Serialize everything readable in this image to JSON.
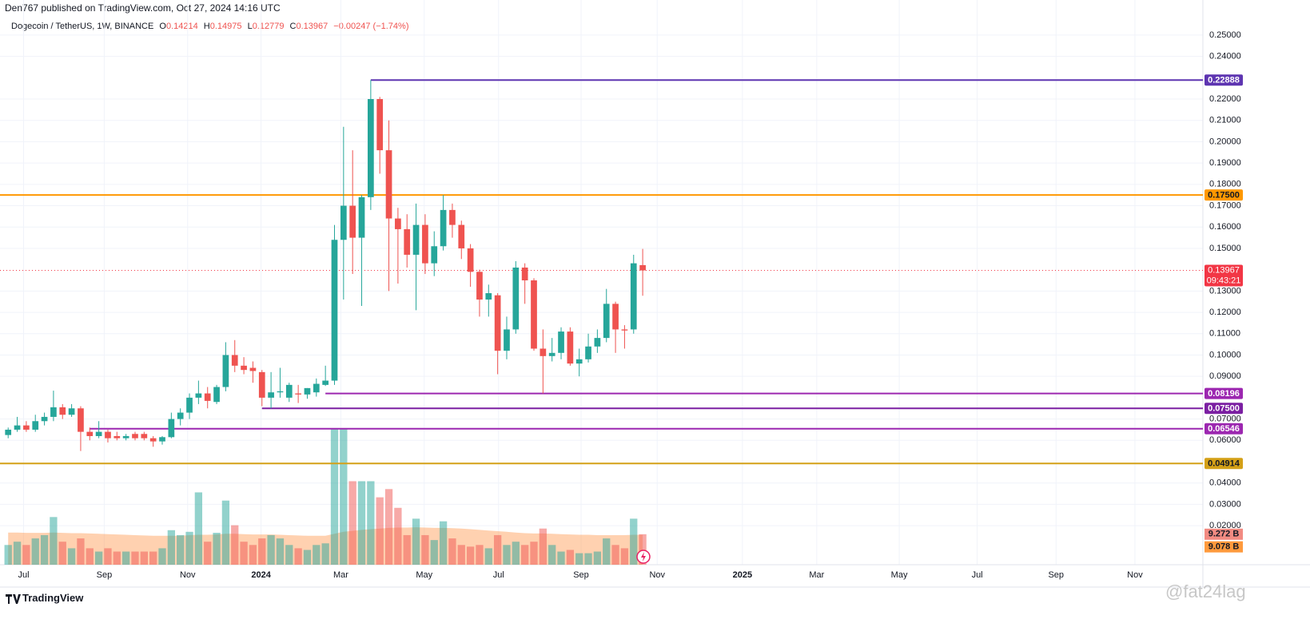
{
  "header": {
    "published": "Den767 published on TradingView.com, Oct 27, 2024 14:16 UTC"
  },
  "legend": {
    "symbol": "Dogecoin / TetherUS, 1W, BINANCE",
    "o": "O",
    "h": "H",
    "l": "L",
    "c": "C",
    "change": "−0.00247 (−1.74%)"
  },
  "footer": {
    "brand": "TradingView",
    "watermark": "@fat24lag"
  },
  "chart_data": {
    "type": "candlestick",
    "up_color": "#26a69a",
    "down_color": "#ef5350",
    "open": [
      0.0625,
      0.065,
      0.067,
      0.065,
      0.069,
      0.071,
      0.0755,
      0.072,
      0.075,
      0.064,
      0.062,
      0.064,
      0.062,
      0.061,
      0.063,
      0.063,
      0.061,
      0.0595,
      0.0615,
      0.07,
      0.073,
      0.08,
      0.082,
      0.078,
      0.085,
      0.1,
      0.095,
      0.094,
      0.092,
      0.08,
      0.0825,
      0.08,
      0.082,
      0.0815,
      0.0825,
      0.086,
      0.088,
      0.154,
      0.17,
      0.155,
      0.174,
      0.22,
      0.196,
      0.164,
      0.159,
      0.147,
      0.161,
      0.143,
      0.151,
      0.168,
      0.161,
      0.15,
      0.139,
      0.126,
      0.128,
      0.102,
      0.112,
      0.141,
      0.135,
      0.103,
      0.0995,
      0.101,
      0.111,
      0.096,
      0.098,
      0.104,
      0.108,
      0.124,
      0.112,
      0.112,
      0.14214
    ],
    "high": [
      0.066,
      0.071,
      0.069,
      0.072,
      0.073,
      0.0833,
      0.077,
      0.077,
      0.076,
      0.066,
      0.069,
      0.065,
      0.064,
      0.063,
      0.064,
      0.064,
      0.062,
      0.062,
      0.073,
      0.075,
      0.082,
      0.088,
      0.085,
      0.086,
      0.106,
      0.107,
      0.099,
      0.097,
      0.093,
      0.092,
      0.094,
      0.087,
      0.086,
      0.0845,
      0.089,
      0.095,
      0.161,
      0.207,
      0.196,
      0.175,
      0.22888,
      0.221,
      0.21,
      0.169,
      0.166,
      0.171,
      0.166,
      0.158,
      0.175,
      0.171,
      0.163,
      0.152,
      0.14,
      0.133,
      0.129,
      0.118,
      0.144,
      0.143,
      0.136,
      0.112,
      0.108,
      0.113,
      0.113,
      0.103,
      0.11,
      0.112,
      0.131,
      0.125,
      0.114,
      0.147,
      0.14975
    ],
    "low": [
      0.061,
      0.064,
      0.064,
      0.064,
      0.067,
      0.069,
      0.07,
      0.071,
      0.055,
      0.06,
      0.061,
      0.059,
      0.06,
      0.06,
      0.06,
      0.06,
      0.057,
      0.058,
      0.061,
      0.067,
      0.07,
      0.077,
      0.075,
      0.077,
      0.083,
      0.092,
      0.091,
      0.087,
      0.076,
      0.075,
      0.08,
      0.078,
      0.0775,
      0.0795,
      0.0805,
      0.0855,
      0.086,
      0.126,
      0.138,
      0.123,
      0.168,
      0.185,
      0.13,
      0.1335,
      0.141,
      0.121,
      0.138,
      0.137,
      0.149,
      0.155,
      0.145,
      0.132,
      0.118,
      0.118,
      0.091,
      0.098,
      0.11,
      0.124,
      0.102,
      0.08196,
      0.097,
      0.098,
      0.095,
      0.09,
      0.0965,
      0.101,
      0.106,
      0.101,
      0.103,
      0.11,
      0.12779
    ],
    "close": [
      0.065,
      0.067,
      0.065,
      0.069,
      0.071,
      0.0755,
      0.072,
      0.075,
      0.064,
      0.062,
      0.064,
      0.061,
      0.061,
      0.062,
      0.061,
      0.061,
      0.0595,
      0.0615,
      0.07,
      0.073,
      0.08,
      0.082,
      0.0785,
      0.085,
      0.1,
      0.095,
      0.093,
      0.0925,
      0.08,
      0.0825,
      0.083,
      0.086,
      0.0815,
      0.0845,
      0.0865,
      0.088,
      0.154,
      0.17,
      0.155,
      0.174,
      0.22,
      0.196,
      0.164,
      0.159,
      0.147,
      0.161,
      0.143,
      0.151,
      0.168,
      0.161,
      0.15,
      0.139,
      0.126,
      0.129,
      0.102,
      0.112,
      0.141,
      0.135,
      0.103,
      0.0995,
      0.101,
      0.111,
      0.096,
      0.098,
      0.104,
      0.108,
      0.124,
      0.112,
      0.1115,
      0.143,
      0.13967
    ],
    "volume": [
      6,
      7,
      6,
      8,
      9,
      14.5,
      7,
      5,
      8,
      5,
      4,
      5,
      4,
      4,
      4,
      4,
      4,
      5,
      10.5,
      9,
      10,
      22,
      7,
      9.7,
      19.5,
      12,
      7,
      6,
      8,
      9,
      8,
      6,
      5,
      4.5,
      6,
      6.5,
      41.5,
      41.5,
      25.4,
      25.4,
      25.4,
      20.5,
      23,
      17.3,
      9,
      14,
      9,
      7.5,
      13.2,
      8,
      6,
      5.5,
      6,
      5,
      9,
      6,
      7,
      6,
      7,
      11,
      6,
      4,
      4.5,
      3.5,
      3.5,
      4,
      8,
      6,
      5,
      14,
      9.272
    ],
    "volume_ma": [
      9.8,
      9.8,
      9.7,
      9.7,
      9.7,
      9.8,
      9.7,
      9.6,
      9.6,
      9.5,
      9.4,
      9.3,
      9.2,
      9.1,
      9.0,
      8.9,
      8.8,
      8.8,
      8.8,
      8.8,
      9.0,
      9.1,
      9.1,
      9.2,
      9.4,
      9.4,
      9.3,
      9.2,
      9.2,
      9.2,
      9.1,
      9.0,
      8.9,
      8.8,
      8.8,
      8.8,
      9.4,
      10.0,
      10.3,
      10.6,
      10.8,
      11.0,
      11.2,
      11.3,
      11.3,
      11.4,
      11.3,
      11.2,
      11.2,
      11.1,
      11.0,
      10.8,
      10.6,
      10.4,
      10.2,
      10.0,
      9.8,
      9.6,
      9.5,
      9.5,
      9.4,
      9.3,
      9.2,
      9.1,
      9.1,
      9.0,
      9.0,
      9.0,
      9.0,
      9.1,
      9.078
    ],
    "volume_up_color": "rgba(38,166,154,0.5)",
    "volume_down_color": "rgba(239,83,80,0.5)",
    "volume_ma_color": "rgba(255,152,80,0.45)",
    "volume_lim": [
      0,
      60
    ],
    "volume_labels": [
      {
        "value": 9.272,
        "label": "9.272 B",
        "color": "#f28b82"
      },
      {
        "value": 9.078,
        "label": "9.078 B",
        "color": "#ff9a3c"
      }
    ],
    "last_price": {
      "value": 0.13967,
      "label": "0.13967",
      "countdown": "09:43:21",
      "color": "#f23645"
    },
    "levels": [
      {
        "value": 0.22888,
        "label": "0.22888",
        "color": "#5e35b1",
        "from": 40
      },
      {
        "value": 0.175,
        "label": "0.17500",
        "color": "#ff9800"
      },
      {
        "value": 0.08196,
        "label": "0.08196",
        "color": "#9c27b0",
        "from": 35
      },
      {
        "value": 0.075,
        "label": "0.07500",
        "color": "#7b1fa2",
        "from": 28
      },
      {
        "value": 0.06546,
        "label": "0.06546",
        "color": "#9c27b0",
        "from": 9
      },
      {
        "value": 0.04914,
        "label": "0.04914",
        "color": "#d4a017"
      }
    ],
    "ylim": [
      0.0017,
      0.2552
    ],
    "yticks": [
      {
        "value": 0.25,
        "label": "0.25000"
      },
      {
        "value": 0.24,
        "label": "0.24000"
      },
      {
        "value": 0.22,
        "label": "0.22000"
      },
      {
        "value": 0.21,
        "label": "0.21000"
      },
      {
        "value": 0.2,
        "label": "0.20000"
      },
      {
        "value": 0.19,
        "label": "0.19000"
      },
      {
        "value": 0.18,
        "label": "0.18000"
      },
      {
        "value": 0.17,
        "label": "0.17000"
      },
      {
        "value": 0.16,
        "label": "0.16000"
      },
      {
        "value": 0.15,
        "label": "0.15000"
      },
      {
        "value": 0.13,
        "label": "0.13000"
      },
      {
        "value": 0.12,
        "label": "0.12000"
      },
      {
        "value": 0.11,
        "label": "0.11000"
      },
      {
        "value": 0.1,
        "label": "0.10000"
      },
      {
        "value": 0.09,
        "label": "0.09000"
      },
      {
        "value": 0.07,
        "label": "0.07000"
      },
      {
        "value": 0.06,
        "label": "0.06000"
      },
      {
        "value": 0.04,
        "label": "0.04000"
      },
      {
        "value": 0.03,
        "label": "0.03000"
      },
      {
        "value": 0.02,
        "label": "0.02000"
      }
    ],
    "xlim": [
      -0.9,
      131.8
    ],
    "xticks": [
      {
        "value": 1.7,
        "label": "Jul"
      },
      {
        "value": 10.6,
        "label": "Sep"
      },
      {
        "value": 19.8,
        "label": "Nov"
      },
      {
        "value": 27.9,
        "label": "2024"
      },
      {
        "value": 36.7,
        "label": "Mar"
      },
      {
        "value": 45.9,
        "label": "May"
      },
      {
        "value": 54.1,
        "label": "Jul"
      },
      {
        "value": 63.2,
        "label": "Sep"
      },
      {
        "value": 71.6,
        "label": "Nov"
      },
      {
        "value": 81,
        "label": "2025"
      },
      {
        "value": 89.2,
        "label": "Mar"
      },
      {
        "value": 98.3,
        "label": "May"
      },
      {
        "value": 106.9,
        "label": "Jul"
      },
      {
        "value": 115.6,
        "label": "Sep"
      },
      {
        "value": 124.3,
        "label": "Nov"
      }
    ],
    "grid": true
  }
}
